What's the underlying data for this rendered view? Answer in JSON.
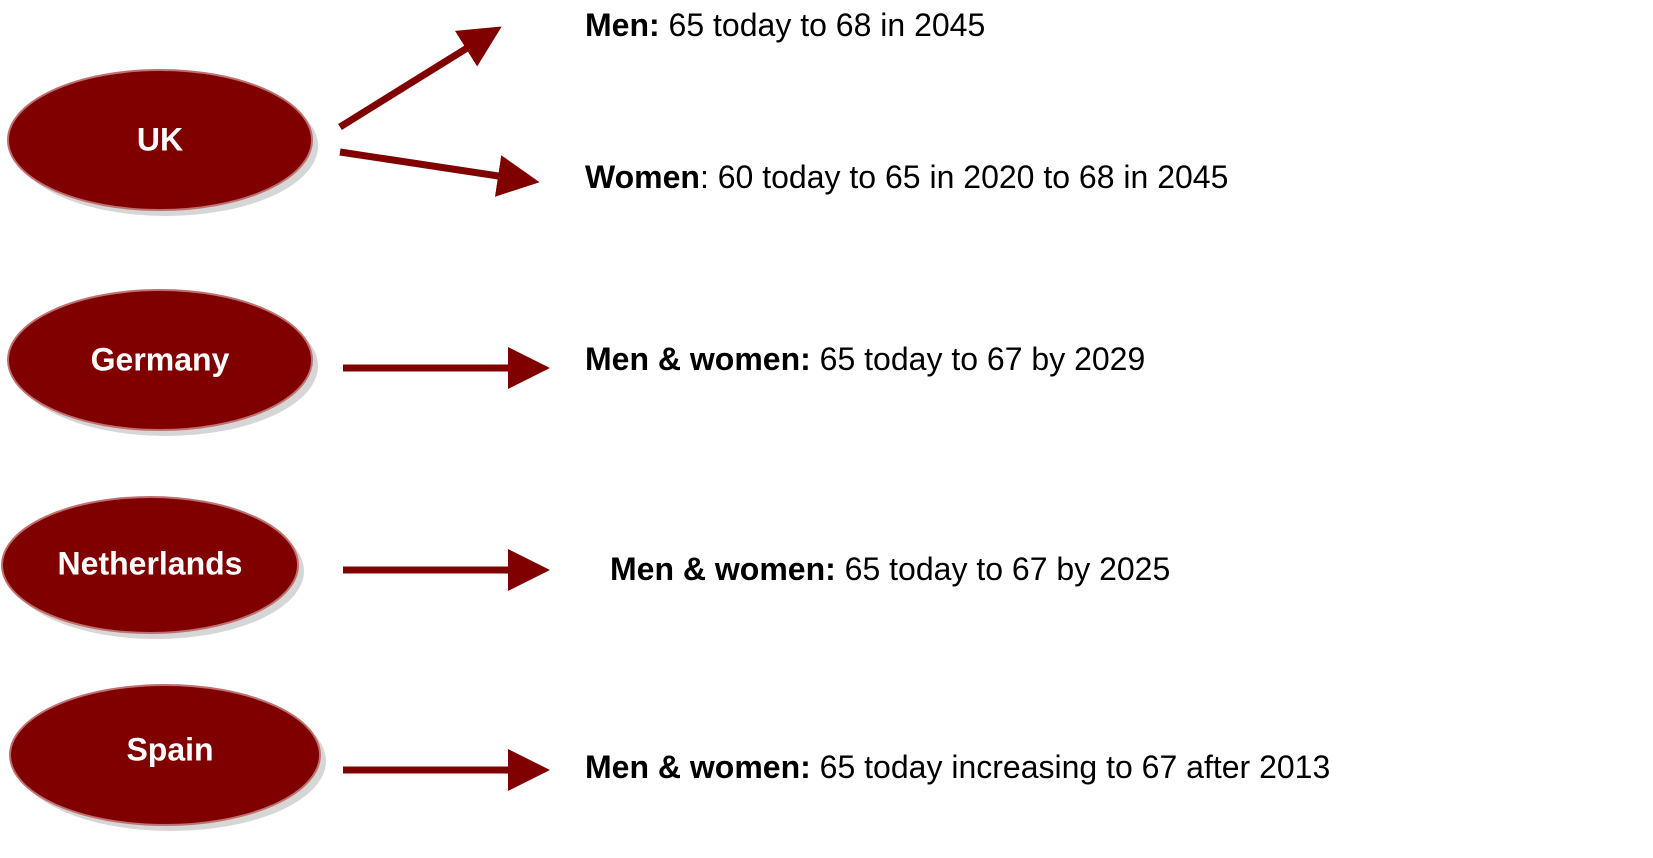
{
  "nodes": [
    {
      "label": "UK"
    },
    {
      "label": "Germany"
    },
    {
      "label": "Netherlands"
    },
    {
      "label": "Spain"
    }
  ],
  "statements": [
    {
      "bold": "Men:",
      "text": " 65 today to 68 in 2045"
    },
    {
      "bold": "Women",
      "text": ": 60 today to 65 in 2020 to 68 in 2045"
    },
    {
      "bold": "Men & women:",
      "text": " 65 today to 67 by 2029"
    },
    {
      "bold": "Men & women:",
      "text": " 65 today to 67 by 2025"
    },
    {
      "bold": "Men & women:",
      "text": " 65 today increasing to 67 after 2013"
    }
  ]
}
